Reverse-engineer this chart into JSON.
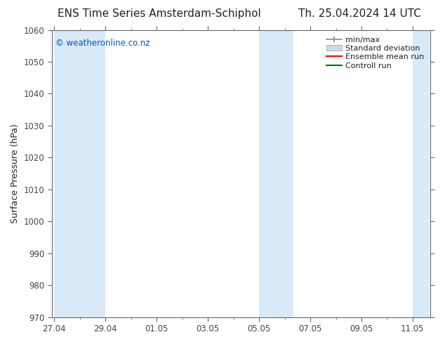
{
  "title_left": "ENS Time Series Amsterdam-Schiphol",
  "title_right": "Th. 25.04.2024 14 UTC",
  "ylabel": "Surface Pressure (hPa)",
  "ylim": [
    970,
    1060
  ],
  "ytick_interval": 10,
  "bg_color": "#ffffff",
  "plot_bg_color": "#ffffff",
  "watermark": "© weatheronline.co.nz",
  "watermark_color": "#0055cc",
  "shaded_bands_x": [
    [
      0.0,
      1.0
    ],
    [
      1.0,
      2.0
    ],
    [
      8.0,
      8.67
    ],
    [
      8.67,
      9.33
    ],
    [
      14.0,
      14.67
    ]
  ],
  "band_color": "#d8eaf8",
  "x_ticks": [
    0,
    2,
    4,
    6,
    8,
    10,
    12,
    14
  ],
  "x_tick_labels": [
    "27.04",
    "29.04",
    "01.05",
    "03.05",
    "05.05",
    "07.05",
    "09.05",
    "11.05"
  ],
  "x_lim": [
    -0.1,
    14.7
  ],
  "x_minor_interval": 1,
  "legend_items": [
    {
      "label": "min/max",
      "color": "#888888",
      "type": "errorbar"
    },
    {
      "label": "Standard deviation",
      "color": "#c8dce8",
      "type": "fill"
    },
    {
      "label": "Ensemble mean run",
      "color": "#ff0000",
      "type": "line"
    },
    {
      "label": "Controll run",
      "color": "#007700",
      "type": "line"
    }
  ],
  "spine_color": "#666666",
  "tick_color": "#444444",
  "grid_color": "#cccccc",
  "title_color": "#222222",
  "title_fontsize": 11,
  "axis_label_fontsize": 9,
  "tick_fontsize": 8.5,
  "legend_fontsize": 8
}
